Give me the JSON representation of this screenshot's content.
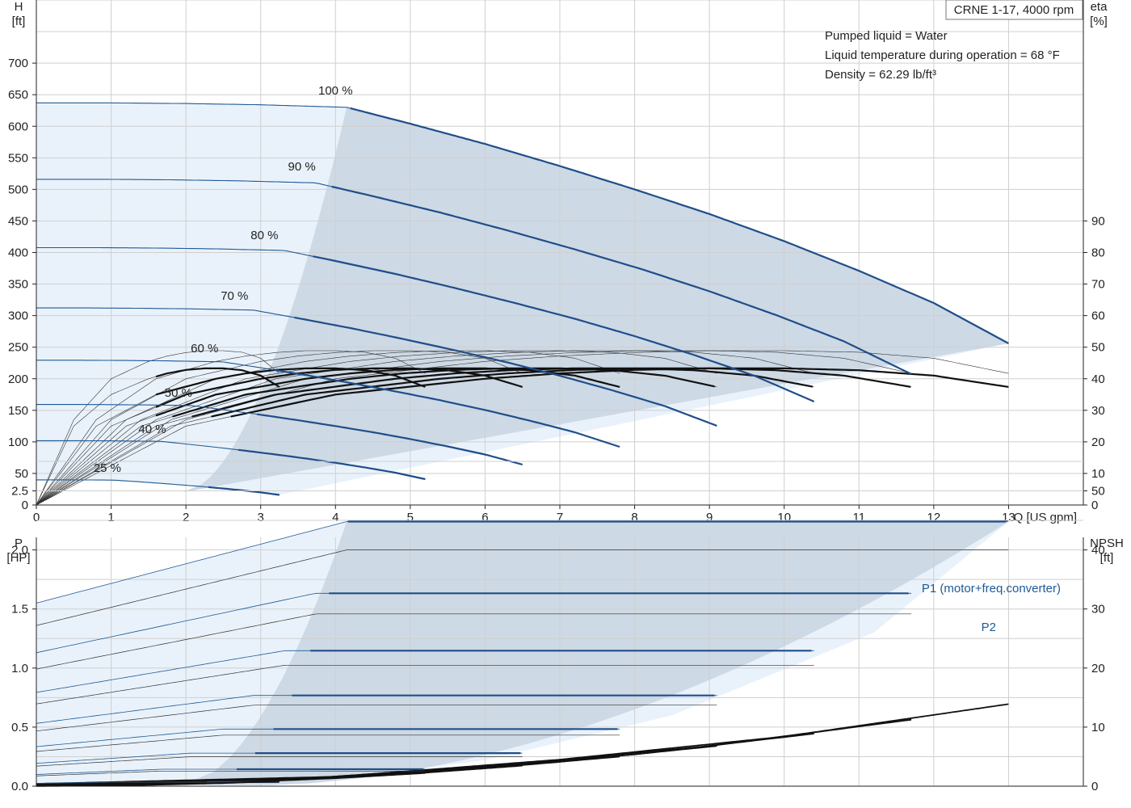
{
  "chart_data": [
    {
      "type": "line",
      "title": "CRNE 1-17, 4000 rpm",
      "annotations": [
        "Pumped liquid = Water",
        "Liquid temperature during operation = 68 °F",
        "Density = 62.29 lb/ft³"
      ],
      "xlabel": "Q [US gpm]",
      "ylabel": "H [ft]",
      "ylabel_lines": [
        "H",
        "[ft]"
      ],
      "y2label_lines": [
        "eta",
        "[%]"
      ],
      "xlim": [
        0,
        14
      ],
      "ylim": [
        0,
        800
      ],
      "y2lim": [
        0,
        160
      ],
      "xticks": [
        0,
        1,
        2,
        3,
        4,
        5,
        6,
        7,
        8,
        9,
        10,
        11,
        12,
        13
      ],
      "yticks": [
        0,
        50,
        100,
        150,
        200,
        250,
        300,
        350,
        400,
        450,
        500,
        550,
        600,
        650,
        700
      ],
      "y2ticks": [
        0,
        10,
        20,
        30,
        40,
        50,
        60,
        70,
        80,
        90
      ],
      "grid": true,
      "speed_labels": [
        "100 %",
        "90 %",
        "80 %",
        "70 %",
        "60 %",
        "50 %",
        "40 %",
        "25 %"
      ],
      "speeds": [
        1.0,
        0.9,
        0.8,
        0.7,
        0.6,
        0.5,
        0.4,
        0.25
      ],
      "head_curve_100": {
        "x": [
          0,
          1,
          2,
          3,
          4.15,
          5,
          6,
          7,
          8,
          9,
          10,
          11,
          12,
          13
        ],
        "y": [
          637,
          637,
          636,
          634,
          630,
          604,
          572,
          537,
          500,
          461,
          418,
          371,
          320,
          256
        ]
      },
      "eta_curve_100": {
        "x": [
          0,
          2,
          4,
          6,
          7,
          8,
          9,
          10,
          11,
          12,
          13
        ],
        "y": [
          0,
          27,
          40,
          45.5,
          47.2,
          48.3,
          48.9,
          48.9,
          48.4,
          46.5,
          41.7
        ]
      },
      "eta_curve_100_drawn": {
        "x": [
          0,
          2,
          4,
          6,
          7,
          8,
          9,
          10,
          11,
          12,
          13
        ],
        "y": [
          0,
          25,
          35,
          40,
          41.7,
          42.8,
          43.3,
          43.3,
          42.7,
          41,
          37.4
        ]
      }
    },
    {
      "type": "line",
      "xlim": [
        0,
        14
      ],
      "ylabel_lines": [
        "P",
        "[HP]"
      ],
      "y2label_lines": [
        "NPSH",
        "[ft]"
      ],
      "ylim": [
        0,
        2.5
      ],
      "y2lim": [
        0,
        50
      ],
      "yticks": [
        0.0,
        0.5,
        1.0,
        1.5,
        2.0,
        2.5
      ],
      "ytick_labels": [
        "0.0",
        "0.5",
        "1.0",
        "1.5",
        "2.0",
        "2.5"
      ],
      "y2ticks": [
        0,
        10,
        20,
        30,
        40,
        50
      ],
      "grid": true,
      "series": [
        {
          "name": "P1 (motor+freq.converter)",
          "x": [
            0,
            4.15,
            9,
            13
          ],
          "y": [
            1.55,
            2.24,
            2.24,
            2.24
          ]
        },
        {
          "name": "P2",
          "x": [
            0,
            4.15,
            9,
            13
          ],
          "y": [
            1.36,
            2.0,
            2.0,
            2.0
          ]
        },
        {
          "name": "NPSH",
          "x": [
            0,
            4,
            7,
            10,
            13
          ],
          "y": [
            0.4,
            1.6,
            4.5,
            8.4,
            13.9
          ]
        }
      ]
    }
  ]
}
